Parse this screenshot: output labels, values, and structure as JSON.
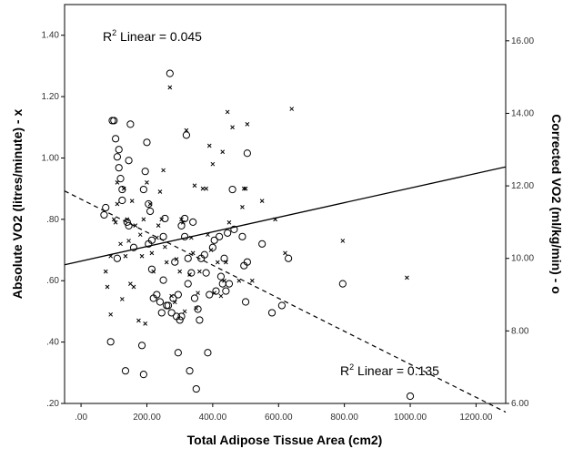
{
  "chart_data": {
    "type": "scatter",
    "xlabel": "Total Adipose Tissue Area (cm2)",
    "ylabel_left": "Absolute VO2 (litres/minute) - x",
    "ylabel_right": "Corrected VO2 (ml/kg/min) - o",
    "xlim": [
      -50,
      1290
    ],
    "ylim_left": [
      0.2,
      1.5
    ],
    "ylim_right": [
      6.0,
      17.0
    ],
    "x_ticks": [
      0,
      200,
      400,
      600,
      800,
      1000,
      1200
    ],
    "x_tick_labels": [
      ".00",
      "200.00",
      "400.00",
      "600.00",
      "800.00",
      "1000.00",
      "1200.00"
    ],
    "y_left_ticks": [
      0.2,
      0.4,
      0.6,
      0.8,
      1.0,
      1.2,
      1.4
    ],
    "y_left_tick_labels": [
      ".20",
      ".40",
      ".60",
      ".80",
      "1.00",
      "1.20",
      "1.40"
    ],
    "y_right_ticks": [
      6,
      8,
      10,
      12,
      14,
      16
    ],
    "y_right_tick_labels": [
      "6.00",
      "8.00",
      "10.00",
      "12.00",
      "14.00",
      "16.00"
    ],
    "grid": false,
    "annotations": [
      {
        "prefix": "R",
        "sup": "2",
        "text": " Linear = 0.045"
      },
      {
        "prefix": "R",
        "sup": "2",
        "text": " Linear = 0.135"
      }
    ],
    "series": [
      {
        "marker": "x",
        "axis": "left",
        "fit_line": {
          "style": "solid",
          "x": [
            -50,
            1290
          ],
          "y": [
            0.652,
            0.971
          ]
        },
        "points": [
          [
            75,
            0.63
          ],
          [
            80,
            0.58
          ],
          [
            90,
            0.68
          ],
          [
            90,
            0.49
          ],
          [
            100,
            0.8
          ],
          [
            105,
            0.79
          ],
          [
            110,
            0.85
          ],
          [
            110,
            0.92
          ],
          [
            120,
            0.72
          ],
          [
            125,
            0.54
          ],
          [
            130,
            0.9
          ],
          [
            135,
            0.68
          ],
          [
            140,
            0.8
          ],
          [
            145,
            0.73
          ],
          [
            150,
            0.59
          ],
          [
            155,
            0.86
          ],
          [
            160,
            0.58
          ],
          [
            165,
            0.78
          ],
          [
            175,
            0.47
          ],
          [
            180,
            0.75
          ],
          [
            185,
            0.68
          ],
          [
            190,
            0.8
          ],
          [
            195,
            0.46
          ],
          [
            200,
            0.92
          ],
          [
            210,
            0.85
          ],
          [
            215,
            0.69
          ],
          [
            220,
            0.63
          ],
          [
            230,
            0.74
          ],
          [
            235,
            0.78
          ],
          [
            240,
            0.89
          ],
          [
            245,
            0.8
          ],
          [
            250,
            0.96
          ],
          [
            255,
            0.71
          ],
          [
            260,
            0.66
          ],
          [
            270,
            1.23
          ],
          [
            275,
            0.55
          ],
          [
            285,
            0.53
          ],
          [
            290,
            0.67
          ],
          [
            300,
            0.63
          ],
          [
            305,
            0.8
          ],
          [
            310,
            0.79
          ],
          [
            315,
            0.5
          ],
          [
            320,
            1.09
          ],
          [
            330,
            0.62
          ],
          [
            335,
            0.74
          ],
          [
            340,
            0.69
          ],
          [
            345,
            0.91
          ],
          [
            350,
            0.51
          ],
          [
            355,
            0.56
          ],
          [
            360,
            0.63
          ],
          [
            370,
            0.9
          ],
          [
            380,
            0.9
          ],
          [
            385,
            0.75
          ],
          [
            390,
            1.04
          ],
          [
            395,
            0.7
          ],
          [
            400,
            0.98
          ],
          [
            405,
            0.56
          ],
          [
            415,
            0.66
          ],
          [
            425,
            0.55
          ],
          [
            430,
            1.02
          ],
          [
            435,
            0.6
          ],
          [
            440,
            0.66
          ],
          [
            445,
            1.15
          ],
          [
            450,
            0.79
          ],
          [
            460,
            1.1
          ],
          [
            480,
            0.6
          ],
          [
            490,
            0.84
          ],
          [
            495,
            0.9
          ],
          [
            500,
            0.9
          ],
          [
            505,
            1.11
          ],
          [
            520,
            0.6
          ],
          [
            550,
            0.86
          ],
          [
            590,
            0.8
          ],
          [
            620,
            0.69
          ],
          [
            640,
            1.16
          ],
          [
            795,
            0.73
          ],
          [
            990,
            0.61
          ]
        ]
      },
      {
        "marker": "o",
        "axis": "right",
        "fit_line": {
          "style": "dashed",
          "x": [
            -50,
            1290
          ],
          "y": [
            11.86,
            5.76
          ]
        },
        "points": [
          [
            70,
            11.2
          ],
          [
            75,
            11.4
          ],
          [
            90,
            7.7
          ],
          [
            95,
            13.8
          ],
          [
            100,
            13.8
          ],
          [
            105,
            13.3
          ],
          [
            110,
            10.0
          ],
          [
            110,
            12.8
          ],
          [
            115,
            12.5
          ],
          [
            115,
            13.0
          ],
          [
            120,
            12.2
          ],
          [
            125,
            11.6
          ],
          [
            125,
            11.9
          ],
          [
            135,
            6.9
          ],
          [
            140,
            11.0
          ],
          [
            145,
            10.9
          ],
          [
            145,
            12.7
          ],
          [
            150,
            13.7
          ],
          [
            160,
            10.3
          ],
          [
            185,
            7.6
          ],
          [
            190,
            6.8
          ],
          [
            190,
            11.9
          ],
          [
            195,
            12.4
          ],
          [
            200,
            13.2
          ],
          [
            205,
            10.4
          ],
          [
            205,
            11.5
          ],
          [
            210,
            11.3
          ],
          [
            215,
            10.5
          ],
          [
            215,
            9.7
          ],
          [
            220,
            8.9
          ],
          [
            230,
            9.0
          ],
          [
            240,
            8.8
          ],
          [
            245,
            8.5
          ],
          [
            250,
            10.6
          ],
          [
            250,
            9.4
          ],
          [
            255,
            11.1
          ],
          [
            260,
            8.7
          ],
          [
            265,
            8.7
          ],
          [
            270,
            15.1
          ],
          [
            275,
            8.5
          ],
          [
            280,
            8.9
          ],
          [
            285,
            9.9
          ],
          [
            290,
            8.4
          ],
          [
            295,
            9.0
          ],
          [
            295,
            7.4
          ],
          [
            300,
            8.3
          ],
          [
            305,
            10.9
          ],
          [
            305,
            8.4
          ],
          [
            315,
            11.1
          ],
          [
            315,
            10.6
          ],
          [
            320,
            13.4
          ],
          [
            325,
            10.0
          ],
          [
            325,
            9.3
          ],
          [
            330,
            6.9
          ],
          [
            335,
            9.6
          ],
          [
            340,
            11.0
          ],
          [
            345,
            8.9
          ],
          [
            350,
            6.4
          ],
          [
            355,
            8.6
          ],
          [
            360,
            8.3
          ],
          [
            365,
            10.0
          ],
          [
            375,
            10.1
          ],
          [
            380,
            9.6
          ],
          [
            385,
            7.4
          ],
          [
            390,
            9.0
          ],
          [
            400,
            10.3
          ],
          [
            405,
            10.5
          ],
          [
            410,
            9.1
          ],
          [
            420,
            10.6
          ],
          [
            425,
            9.5
          ],
          [
            430,
            9.3
          ],
          [
            435,
            10.0
          ],
          [
            440,
            9.1
          ],
          [
            445,
            10.7
          ],
          [
            450,
            9.3
          ],
          [
            460,
            11.9
          ],
          [
            465,
            10.8
          ],
          [
            490,
            10.6
          ],
          [
            495,
            9.8
          ],
          [
            500,
            8.8
          ],
          [
            505,
            9.9
          ],
          [
            505,
            12.9
          ],
          [
            550,
            10.4
          ],
          [
            580,
            8.5
          ],
          [
            610,
            8.7
          ],
          [
            630,
            10.0
          ],
          [
            795,
            9.3
          ],
          [
            1000,
            6.2
          ]
        ]
      }
    ]
  }
}
